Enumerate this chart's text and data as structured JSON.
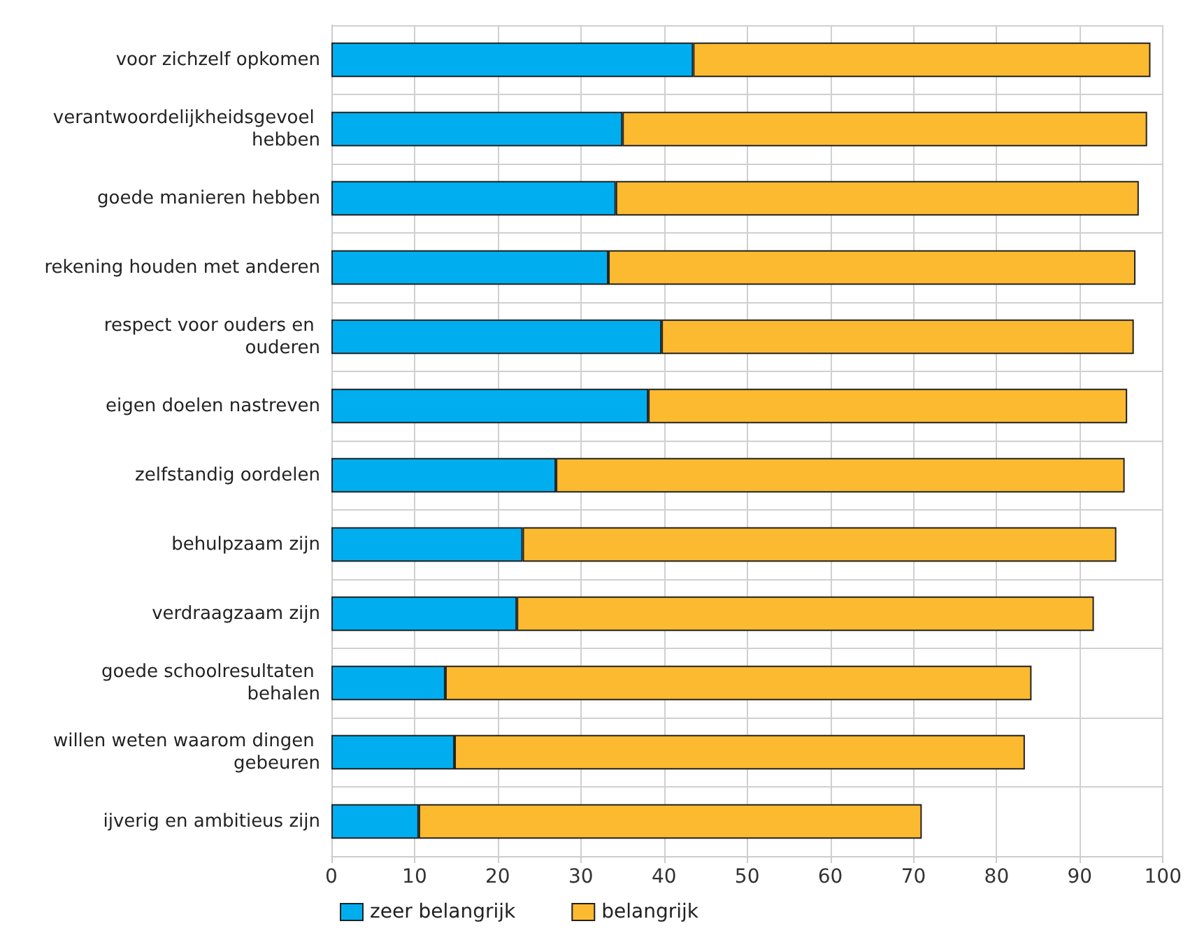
{
  "chart_data": {
    "type": "bar",
    "orientation": "horizontal",
    "stacked": true,
    "categories": [
      "voor zichzelf opkomen",
      "verantwoordelijkheidsgevoel hebben",
      "goede manieren hebben",
      "rekening houden met anderen",
      "respect voor ouders en ouderen",
      "eigen doelen nastreven",
      "zelfstandig oordelen",
      "behulpzaam zijn",
      "verdraagzaam zijn",
      "goede schoolresultaten behalen",
      "willen weten waarom dingen gebeuren",
      "ijverig en ambitieus zijn"
    ],
    "series": [
      {
        "name": "zeer belangrijk",
        "color": "#00aeef",
        "values": [
          43.5,
          35.0,
          34.2,
          33.3,
          39.7,
          38.1,
          27.0,
          23.0,
          22.3,
          13.7,
          14.8,
          10.5
        ]
      },
      {
        "name": "belangrijk",
        "color": "#fbba30",
        "values": [
          55.0,
          63.1,
          62.9,
          63.4,
          56.8,
          57.6,
          68.4,
          71.4,
          69.4,
          70.5,
          68.6,
          60.5
        ]
      }
    ],
    "xlim": [
      0,
      100
    ],
    "xticks": [
      0,
      10,
      20,
      30,
      40,
      50,
      60,
      70,
      80,
      90,
      100
    ],
    "grid": true,
    "legend": "bottom"
  }
}
